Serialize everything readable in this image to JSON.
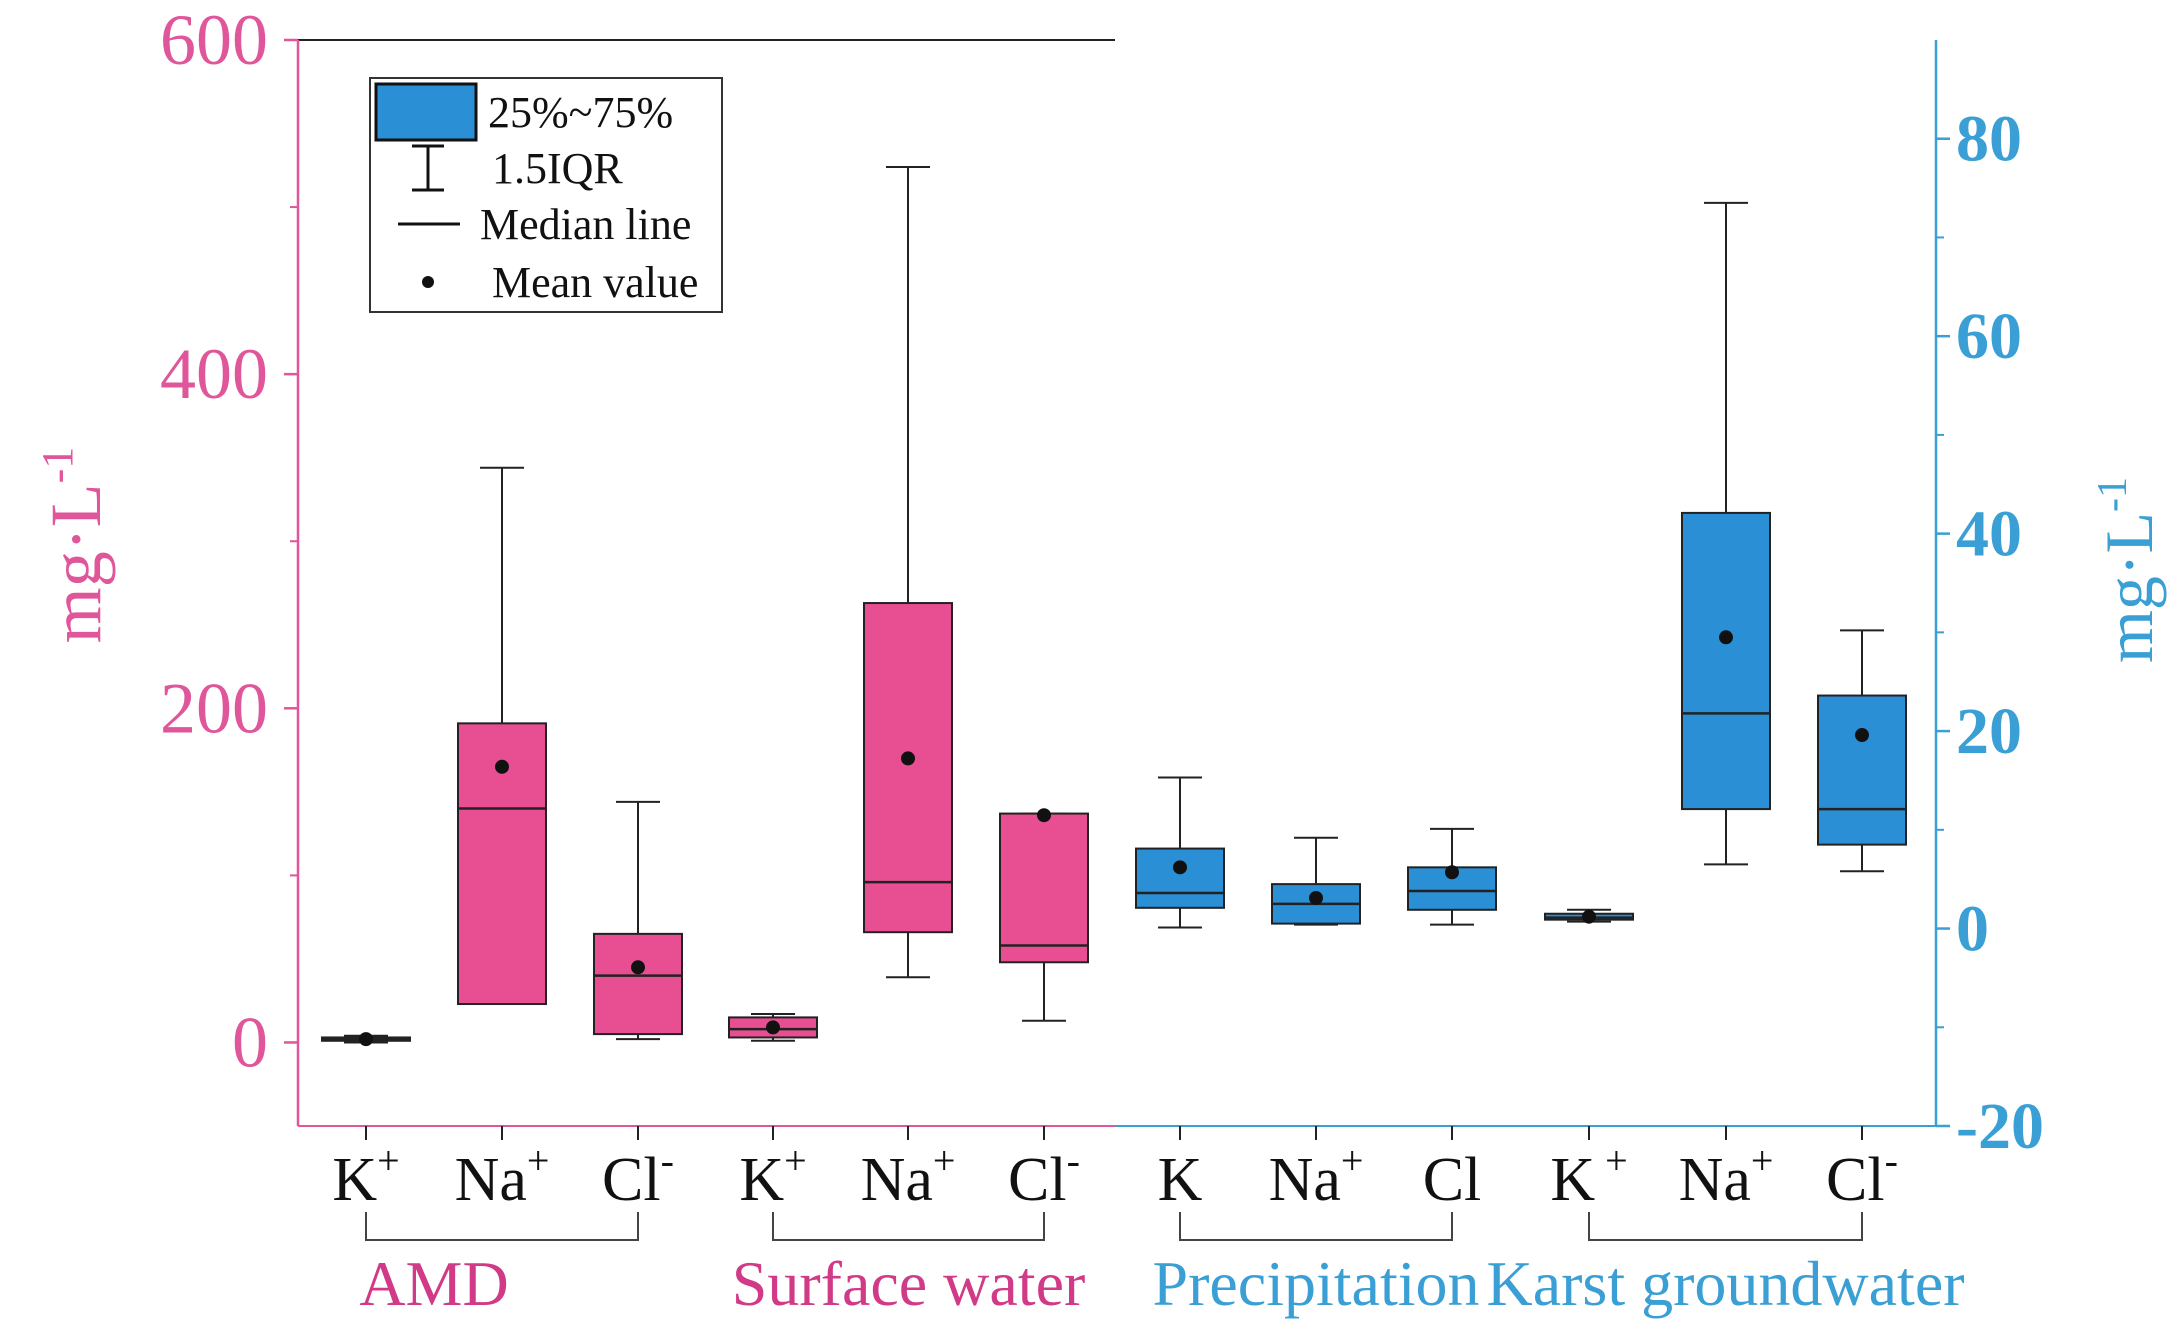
{
  "chart_data": {
    "type": "box",
    "left_axis": {
      "label_main": "mg·L",
      "label_sup": "-1",
      "ylim": [
        -50,
        600
      ],
      "ticks": [
        0,
        200,
        400,
        600
      ],
      "color": "#e0569a"
    },
    "right_axis": {
      "label_main": "mg·L",
      "label_sup": "-1",
      "ylim": [
        -20,
        90
      ],
      "ticks": [
        -20,
        0,
        20,
        40,
        60,
        80
      ],
      "color": "#3a9fd4"
    },
    "legend": {
      "position": "top-left",
      "entries": [
        {
          "label": "25%~75%",
          "kind": "box"
        },
        {
          "label": "1.5IQR",
          "kind": "whisker"
        },
        {
          "label": "Median line",
          "kind": "line"
        },
        {
          "label": "Mean value",
          "kind": "dot"
        }
      ]
    },
    "groups": [
      {
        "name": "AMD",
        "axis": "left",
        "fill": "#e84f92",
        "label_color": "#d13a87",
        "boxes": [
          {
            "ion": "K",
            "sup": "+",
            "whisker_low": 0,
            "q1": 1,
            "median": 2,
            "q3": 3,
            "whisker_high": 4,
            "mean": 2
          },
          {
            "ion": "Na",
            "sup": "+",
            "whisker_low": 23,
            "q1": 23,
            "median": 140,
            "q3": 191,
            "whisker_high": 344,
            "mean": 165
          },
          {
            "ion": "Cl",
            "sup": "-",
            "whisker_low": 2,
            "q1": 5,
            "median": 40,
            "q3": 65,
            "whisker_high": 144,
            "mean": 45
          }
        ]
      },
      {
        "name": "Surface water",
        "axis": "left",
        "fill": "#e84f92",
        "label_color": "#d13a87",
        "boxes": [
          {
            "ion": "K",
            "sup": "+",
            "whisker_low": 1,
            "q1": 3,
            "median": 8,
            "q3": 15,
            "whisker_high": 17,
            "mean": 9
          },
          {
            "ion": "Na",
            "sup": "+",
            "whisker_low": 39,
            "q1": 66,
            "median": 96,
            "q3": 263,
            "whisker_high": 524,
            "mean": 170
          },
          {
            "ion": "Cl",
            "sup": "-",
            "whisker_low": 13,
            "q1": 48,
            "median": 58,
            "q3": 137,
            "whisker_high": 137,
            "mean": 136
          }
        ]
      },
      {
        "name": "Precipitation",
        "axis": "right",
        "fill": "#2b8fd6",
        "label_color": "#3a9fd4",
        "boxes": [
          {
            "ion": "K",
            "sup": "",
            "whisker_low": 0.1,
            "q1": 2.1,
            "median": 3.6,
            "q3": 8.1,
            "whisker_high": 15.3,
            "mean": 6.2
          },
          {
            "ion": "Na",
            "sup": "+",
            "whisker_low": 0.4,
            "q1": 0.5,
            "median": 2.5,
            "q3": 4.5,
            "whisker_high": 9.2,
            "mean": 3.1
          },
          {
            "ion": "Cl",
            "sup": "",
            "whisker_low": 0.4,
            "q1": 1.9,
            "median": 3.8,
            "q3": 6.2,
            "whisker_high": 10.1,
            "mean": 5.7
          }
        ]
      },
      {
        "name": "Karst  groundwater",
        "axis": "right",
        "fill": "#2b8fd6",
        "label_color": "#3a9fd4",
        "boxes": [
          {
            "ion": "K",
            "sup": " +",
            "whisker_low": 0.7,
            "q1": 0.9,
            "median": 1.1,
            "q3": 1.5,
            "whisker_high": 1.9,
            "mean": 1.2
          },
          {
            "ion": "Na",
            "sup": "+",
            "whisker_low": 6.5,
            "q1": 12.1,
            "median": 21.8,
            "q3": 42.1,
            "whisker_high": 73.5,
            "mean": 29.5
          },
          {
            "ion": "Cl",
            "sup": "-",
            "whisker_low": 5.8,
            "q1": 8.5,
            "median": 12.1,
            "q3": 23.6,
            "whisker_high": 30.2,
            "mean": 19.6
          }
        ]
      }
    ]
  }
}
